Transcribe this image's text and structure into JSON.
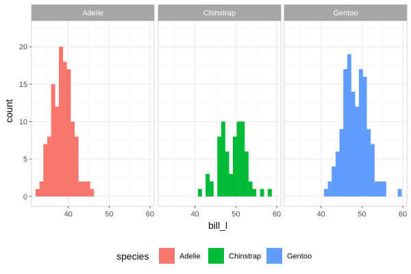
{
  "chart_data": {
    "type": "bar",
    "subtype": "faceted-histogram",
    "xlabel": "bill_l",
    "ylabel": "count",
    "xlim": [
      31,
      61
    ],
    "ylim": [
      -1.3,
      23.5
    ],
    "x_ticks": [
      40,
      50,
      60
    ],
    "y_ticks": [
      0,
      5,
      10,
      15,
      20
    ],
    "bin_width": 0.95,
    "grid": true,
    "legend_title": "species",
    "legend_position": "bottom",
    "panels": [
      {
        "name": "Adelie",
        "color": "#F8766D",
        "bin_starts": [
          32.0,
          32.95,
          33.9,
          34.85,
          35.8,
          36.75,
          37.7,
          38.65,
          39.6,
          40.55,
          41.5,
          42.45,
          43.4,
          44.35,
          45.3,
          46.25
        ],
        "counts": [
          1,
          2,
          7,
          8,
          15,
          12,
          20,
          18,
          17,
          10,
          8,
          2,
          2,
          2,
          1,
          0
        ]
      },
      {
        "name": "Chinstrap",
        "color": "#00BA38",
        "bin_starts": [
          40.7,
          41.65,
          42.6,
          43.55,
          44.5,
          45.45,
          46.4,
          47.35,
          48.3,
          49.25,
          50.2,
          51.15,
          52.1,
          53.05,
          54.0,
          54.95,
          55.9,
          56.85,
          57.8
        ],
        "counts": [
          1,
          0,
          3,
          2,
          0,
          8,
          10,
          6,
          3,
          8,
          10,
          10,
          6,
          2,
          1,
          0,
          1,
          0,
          1
        ]
      },
      {
        "name": "Gentoo",
        "color": "#619CFF",
        "bin_starts": [
          40.7,
          41.65,
          42.6,
          43.55,
          44.5,
          45.45,
          46.4,
          47.35,
          48.3,
          49.25,
          50.2,
          51.15,
          52.1,
          53.05,
          54.0,
          54.95,
          55.9,
          56.85,
          57.8,
          58.75,
          59.7
        ],
        "counts": [
          1,
          2,
          4,
          6,
          9,
          17,
          19,
          14,
          12,
          17,
          16,
          9,
          7,
          2,
          2,
          2,
          0,
          0,
          0,
          1,
          0
        ]
      }
    ]
  }
}
